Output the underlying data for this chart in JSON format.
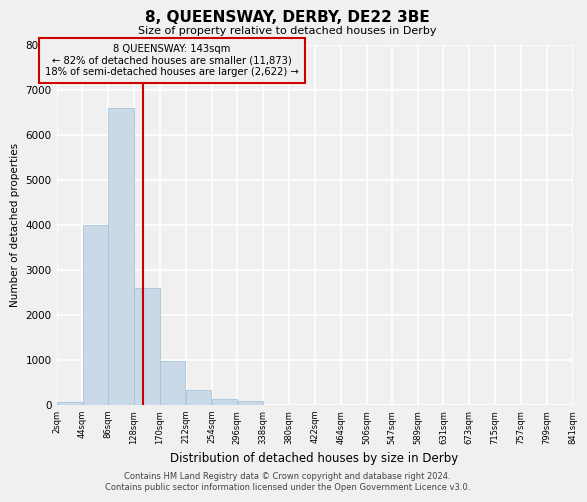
{
  "title": "8, QUEENSWAY, DERBY, DE22 3BE",
  "subtitle": "Size of property relative to detached houses in Derby",
  "xlabel": "Distribution of detached houses by size in Derby",
  "ylabel": "Number of detached properties",
  "footer_line1": "Contains HM Land Registry data © Crown copyright and database right 2024.",
  "footer_line2": "Contains public sector information licensed under the Open Government Licence v3.0.",
  "annotation_title": "8 QUEENSWAY: 143sqm",
  "annotation_line2": "← 82% of detached houses are smaller (11,873)",
  "annotation_line3": "18% of semi-detached houses are larger (2,622) →",
  "bar_color": "#c9d9e8",
  "bar_edgecolor": "#a8c4d8",
  "vline_color": "#cc0000",
  "vline_x": 143,
  "background_color": "#f0f0f0",
  "grid_color": "#ffffff",
  "bin_edges": [
    2,
    44,
    86,
    128,
    170,
    212,
    254,
    296,
    338,
    380,
    422,
    464,
    506,
    547,
    589,
    631,
    673,
    715,
    757,
    799,
    841
  ],
  "bin_labels": [
    "2sqm",
    "44sqm",
    "86sqm",
    "128sqm",
    "170sqm",
    "212sqm",
    "254sqm",
    "296sqm",
    "338sqm",
    "380sqm",
    "422sqm",
    "464sqm",
    "506sqm",
    "547sqm",
    "589sqm",
    "631sqm",
    "673sqm",
    "715sqm",
    "757sqm",
    "799sqm",
    "841sqm"
  ],
  "bar_heights": [
    50,
    4000,
    6600,
    2600,
    960,
    320,
    120,
    80,
    0,
    0,
    0,
    0,
    0,
    0,
    0,
    0,
    0,
    0,
    0,
    0
  ],
  "ylim": [
    0,
    8000
  ],
  "yticks": [
    0,
    1000,
    2000,
    3000,
    4000,
    5000,
    6000,
    7000,
    8000
  ]
}
